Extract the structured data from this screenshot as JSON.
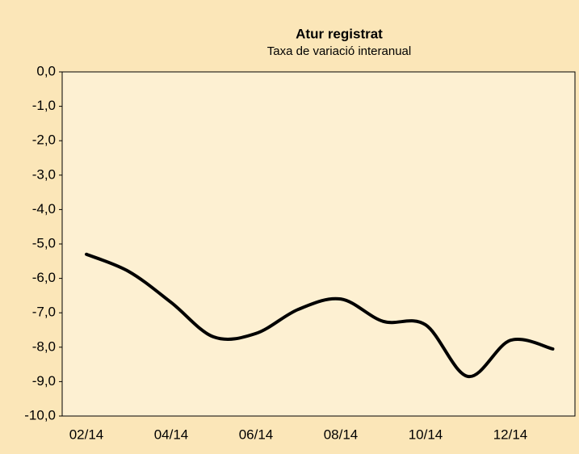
{
  "chart_data": {
    "type": "line",
    "title": "Atur registrat",
    "subtitle": "Taxa de variació interanual",
    "categories": [
      "02/14",
      null,
      "04/14",
      null,
      "06/14",
      null,
      "08/14",
      null,
      "10/14",
      null,
      "12/14",
      null
    ],
    "series": [
      {
        "color": "#000000",
        "values": [
          -5.3,
          -5.8,
          -6.7,
          -7.7,
          -7.6,
          -6.9,
          -6.6,
          -7.25,
          -7.35,
          -8.85,
          -7.8,
          -8.05
        ]
      }
    ],
    "ylim": [
      -10,
      0
    ],
    "yticks": [
      {
        "value": 0,
        "label": "0,0"
      },
      {
        "value": -1,
        "label": "-1,0"
      },
      {
        "value": -2,
        "label": "-2,0"
      },
      {
        "value": -3,
        "label": "-3,0"
      },
      {
        "value": -4,
        "label": "-4,0"
      },
      {
        "value": -5,
        "label": "-5,0"
      },
      {
        "value": -6,
        "label": "-6,0"
      },
      {
        "value": -7,
        "label": "-7,0"
      },
      {
        "value": -8,
        "label": "-8,0"
      },
      {
        "value": -9,
        "label": "-9,0"
      },
      {
        "value": -10,
        "label": "-10,0"
      }
    ],
    "grid": false
  }
}
